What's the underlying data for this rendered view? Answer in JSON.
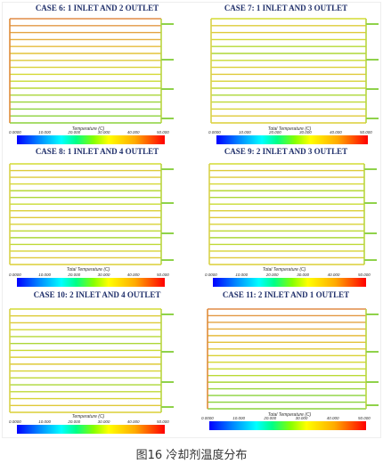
{
  "figure": {
    "caption": "图16 冷却剂温度分布",
    "panels": [
      {
        "title": "CASE 6: 1 INLET AND 2 OUTLET",
        "colorbar_title": "Temperature (C)",
        "ticks": [
          "0.0000",
          "10.000",
          "20.000",
          "30.000",
          "40.000",
          "50.000"
        ]
      },
      {
        "title": "CASE 7: 1 INLET AND 3 OUTLET",
        "colorbar_title": "Total Temperature (C)",
        "ticks": [
          "0.0000",
          "10.000",
          "20.000",
          "30.000",
          "40.000",
          "50.000"
        ]
      },
      {
        "title": "CASE 8: 1 INLET AND 4 OUTLET",
        "colorbar_title": "Total Temperature (C)",
        "ticks": [
          "0.0000",
          "10.000",
          "20.000",
          "30.000",
          "40.000",
          "50.000"
        ]
      },
      {
        "title": "CASE 9: 2 INLET AND 3 OUTLET",
        "colorbar_title": "Total Temperature (C)",
        "ticks": [
          "0.0000",
          "10.000",
          "20.000",
          "30.000",
          "40.000",
          "50.000"
        ]
      },
      {
        "title": "CASE 10: 2 INLET AND 4 OUTLET",
        "colorbar_title": "Temperature (C)",
        "ticks": [
          "0.0000",
          "10.000",
          "20.000",
          "30.000",
          "40.000",
          "50.000"
        ]
      },
      {
        "title": "CASE 11: 2 INLET AND 1 OUTLET",
        "colorbar_title": "Total Temperature (C)",
        "ticks": [
          "0.0000",
          "10.000",
          "20.000",
          "30.000",
          "40.000",
          "50.000"
        ]
      }
    ]
  }
}
